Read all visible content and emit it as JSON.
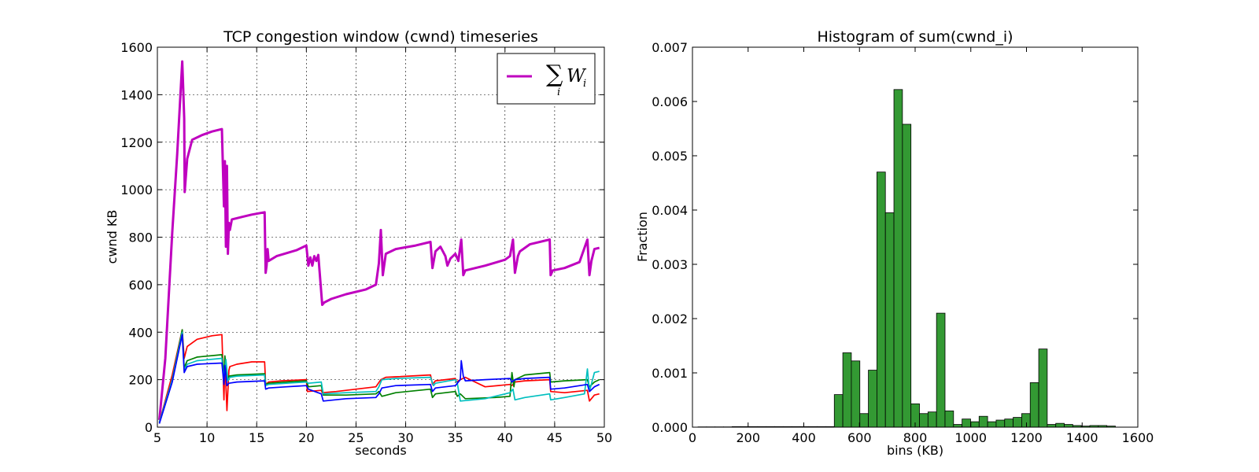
{
  "chart_data": [
    {
      "type": "line",
      "title": "TCP congestion window (cwnd) timeseries",
      "xlabel": "seconds",
      "ylabel": "cwnd KB",
      "xlim": [
        5,
        50
      ],
      "ylim": [
        0,
        1600
      ],
      "xticks": [
        "5",
        "10",
        "15",
        "20",
        "25",
        "30",
        "35",
        "40",
        "45",
        "50"
      ],
      "yticks": [
        "0",
        "200",
        "400",
        "600",
        "800",
        "1000",
        "1200",
        "1400",
        "1600"
      ],
      "grid": true,
      "legend": {
        "placement": "top-right",
        "entries": [
          {
            "color": "#bf00bf",
            "sigma": "∑",
            "sub": "i",
            "var": "W",
            "var_sub": "i"
          }
        ]
      },
      "series": [
        {
          "name": "",
          "color": "#bf00bf",
          "width": 3,
          "x": [
            5.2,
            5.8,
            6.5,
            7.0,
            7.5,
            7.6,
            7.7,
            7.75,
            8.0,
            8.5,
            9.5,
            10.5,
            11.5,
            11.7,
            11.8,
            11.9,
            12.0,
            12.1,
            12.2,
            12.3,
            12.5,
            13.5,
            14.5,
            15.8,
            15.9,
            16.0,
            16.1,
            16.2,
            17.0,
            19.0,
            20.0,
            20.2,
            20.4,
            20.6,
            20.8,
            21.0,
            21.2,
            21.4,
            21.6,
            21.8,
            22.5,
            24.0,
            26.0,
            27.0,
            27.3,
            27.5,
            27.7,
            28.0,
            29.0,
            31.0,
            32.5,
            32.7,
            33.0,
            33.5,
            34.0,
            34.2,
            34.5,
            35.0,
            35.3,
            35.6,
            35.8,
            36.0,
            38.0,
            40.0,
            40.5,
            40.8,
            41.0,
            41.3,
            41.5,
            42.5,
            44.5,
            44.6,
            44.8,
            46.0,
            47.5,
            48.3,
            48.5,
            48.7,
            49.0,
            49.5
          ],
          "y": [
            30,
            290,
            820,
            1150,
            1540,
            1430,
            1300,
            990,
            1130,
            1210,
            1230,
            1245,
            1255,
            930,
            1120,
            760,
            1100,
            730,
            860,
            830,
            875,
            885,
            895,
            905,
            650,
            680,
            750,
            700,
            720,
            745,
            765,
            680,
            715,
            680,
            720,
            700,
            725,
            620,
            515,
            525,
            540,
            560,
            580,
            600,
            690,
            830,
            640,
            730,
            750,
            765,
            780,
            670,
            740,
            760,
            720,
            680,
            710,
            730,
            700,
            790,
            640,
            660,
            680,
            705,
            720,
            790,
            650,
            720,
            740,
            770,
            790,
            640,
            660,
            670,
            695,
            790,
            640,
            700,
            750,
            755
          ]
        },
        {
          "name": "",
          "color": "#ff0000",
          "width": 1.7,
          "x": [
            5.2,
            6.5,
            7.5,
            7.7,
            8.0,
            9.0,
            10.5,
            11.5,
            11.7,
            11.8,
            12.0,
            12.2,
            12.3,
            13.0,
            14.5,
            15.8,
            15.9,
            16.2,
            17.5,
            20.0,
            20.1,
            21.5,
            21.6,
            23.0,
            26.0,
            27.0,
            27.5,
            28.0,
            29.0,
            32.5,
            32.7,
            33.0,
            35.0,
            35.1,
            35.5,
            36.0,
            38.0,
            40.5,
            40.7,
            41.0,
            42.0,
            44.5,
            44.6,
            46.0,
            48.3,
            48.5,
            49.0,
            49.5
          ],
          "y": [
            20,
            220,
            410,
            290,
            340,
            370,
            385,
            390,
            115,
            280,
            70,
            240,
            255,
            265,
            275,
            275,
            180,
            190,
            195,
            200,
            150,
            155,
            145,
            150,
            165,
            170,
            200,
            210,
            212,
            220,
            180,
            195,
            205,
            190,
            200,
            210,
            170,
            180,
            175,
            190,
            195,
            200,
            150,
            145,
            155,
            110,
            135,
            140
          ]
        },
        {
          "name": "",
          "color": "#008000",
          "width": 1.7,
          "x": [
            5.2,
            6.5,
            7.5,
            7.7,
            8.0,
            9.0,
            11.5,
            11.7,
            11.8,
            12.0,
            12.2,
            13.0,
            15.8,
            15.9,
            16.2,
            18.0,
            20.0,
            20.2,
            21.5,
            21.7,
            24.0,
            27.0,
            27.3,
            27.6,
            29.0,
            32.5,
            32.7,
            33.0,
            35.0,
            35.2,
            35.5,
            36.0,
            39.0,
            40.5,
            40.7,
            40.9,
            41.0,
            42.0,
            44.5,
            44.6,
            46.0,
            48.3,
            48.5,
            49.0,
            49.5
          ],
          "y": [
            20,
            200,
            410,
            250,
            280,
            295,
            305,
            220,
            300,
            200,
            215,
            220,
            225,
            180,
            185,
            190,
            195,
            170,
            175,
            135,
            135,
            140,
            150,
            130,
            145,
            160,
            125,
            140,
            150,
            130,
            140,
            120,
            125,
            130,
            230,
            170,
            200,
            220,
            230,
            190,
            195,
            200,
            170,
            190,
            200
          ]
        },
        {
          "name": "",
          "color": "#00bfbf",
          "width": 1.7,
          "x": [
            5.2,
            6.5,
            7.5,
            7.7,
            8.0,
            9.0,
            11.5,
            11.7,
            11.9,
            12.1,
            12.3,
            13.0,
            15.8,
            15.9,
            16.2,
            18.0,
            20.0,
            20.2,
            21.5,
            21.7,
            24.0,
            27.0,
            27.3,
            27.6,
            29.0,
            32.5,
            32.8,
            33.0,
            35.0,
            35.2,
            35.5,
            38.0,
            40.5,
            40.8,
            41.0,
            42.0,
            44.5,
            44.6,
            46.0,
            48.0,
            48.3,
            48.5,
            49.0,
            49.5
          ],
          "y": [
            20,
            200,
            400,
            240,
            265,
            280,
            290,
            200,
            285,
            195,
            210,
            215,
            220,
            175,
            180,
            185,
            190,
            185,
            190,
            140,
            145,
            150,
            170,
            200,
            205,
            210,
            175,
            185,
            200,
            185,
            110,
            120,
            145,
            160,
            115,
            125,
            140,
            115,
            125,
            140,
            245,
            150,
            230,
            235
          ]
        },
        {
          "name": "",
          "color": "#0000ff",
          "width": 1.7,
          "x": [
            5.2,
            6.5,
            7.5,
            7.7,
            8.0,
            9.0,
            11.5,
            11.7,
            11.8,
            12.0,
            12.2,
            13.0,
            15.8,
            15.9,
            16.2,
            18.0,
            20.0,
            20.2,
            21.5,
            21.7,
            24.0,
            27.0,
            27.3,
            27.6,
            29.0,
            32.5,
            32.7,
            33.0,
            35.0,
            35.5,
            35.6,
            35.8,
            36.0,
            38.0,
            40.5,
            40.7,
            41.0,
            42.0,
            44.5,
            44.6,
            46.0,
            48.3,
            48.5,
            49.0,
            49.5
          ],
          "y": [
            15,
            190,
            390,
            230,
            255,
            265,
            270,
            180,
            260,
            175,
            185,
            190,
            195,
            160,
            165,
            170,
            175,
            160,
            140,
            110,
            120,
            125,
            140,
            165,
            175,
            180,
            150,
            165,
            175,
            200,
            280,
            215,
            195,
            200,
            205,
            190,
            200,
            205,
            210,
            160,
            165,
            180,
            150,
            170,
            180
          ]
        }
      ]
    },
    {
      "type": "bar",
      "title": "Histogram of sum(cwnd_i)",
      "xlabel": "bins (KB)",
      "ylabel": "Fraction",
      "xlim": [
        0,
        1600
      ],
      "ylim": [
        0,
        0.007
      ],
      "xticks": [
        "0",
        "200",
        "400",
        "600",
        "800",
        "1000",
        "1200",
        "1400",
        "1600"
      ],
      "yticks": [
        "0.000",
        "0.001",
        "0.002",
        "0.003",
        "0.004",
        "0.005",
        "0.006",
        "0.007"
      ],
      "grid": false,
      "color": "#339933",
      "bin_start": 20,
      "bin_width": 30.6,
      "values": [
        5e-06,
        5e-06,
        5e-06,
        5e-06,
        1e-05,
        1e-05,
        1e-05,
        1e-05,
        1e-05,
        1e-05,
        1e-05,
        1e-05,
        1e-05,
        1e-05,
        1e-05,
        1e-05,
        0.0006,
        0.00137,
        0.00122,
        0.00025,
        0.00105,
        0.0047,
        0.00395,
        0.00622,
        0.00558,
        0.00043,
        0.00025,
        0.00028,
        0.0021,
        0.0003,
        5e-05,
        0.00015,
        0.0001,
        0.0002,
        0.0001,
        0.00013,
        0.00015,
        0.00018,
        0.00025,
        0.00082,
        0.00144,
        5e-05,
        7e-05,
        5e-05,
        3e-05,
        2e-05,
        3e-05,
        3e-05,
        2e-05
      ]
    }
  ]
}
